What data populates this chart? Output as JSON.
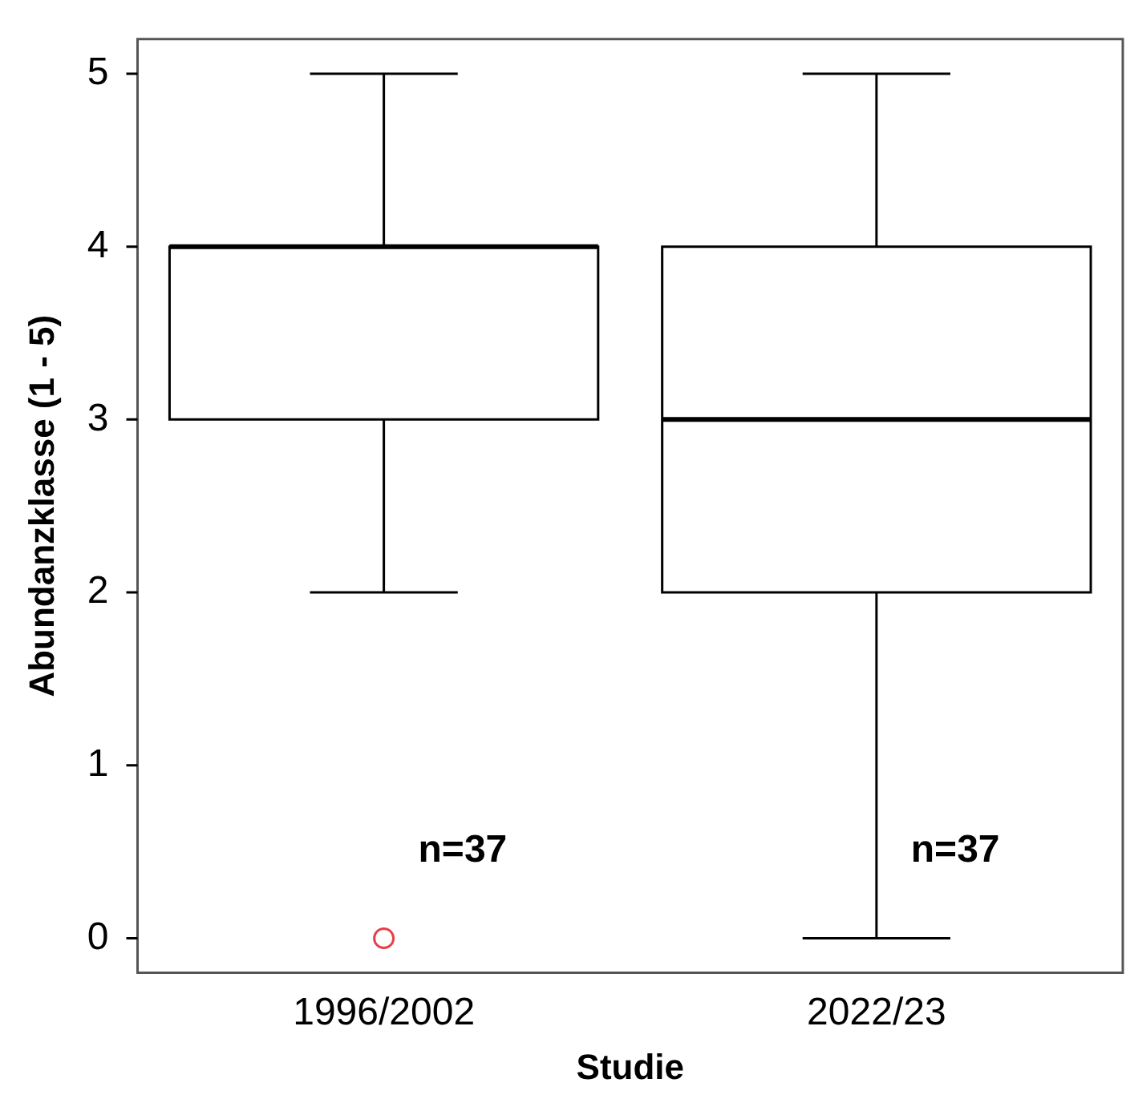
{
  "chart_data": {
    "type": "box",
    "xlabel": "Studie",
    "ylabel": "Abundanzklasse (1 - 5)",
    "categories": [
      "1996/2002",
      "2022/23"
    ],
    "boxes": [
      {
        "low": 2,
        "q1": 3,
        "median": 4,
        "q3": 4,
        "high": 5
      },
      {
        "low": 0,
        "q1": 2,
        "median": 3,
        "q3": 4,
        "high": 5
      }
    ],
    "series": [
      {
        "type": "scatter",
        "color": "#e8404a",
        "x": [
          "1996/2002"
        ],
        "values": [
          0
        ]
      }
    ],
    "ylim": [
      -0.2,
      5.2
    ],
    "yticks": [
      0,
      1,
      2,
      3,
      4,
      5
    ],
    "grid": false,
    "annotations": [
      "n=37",
      "n=37"
    ]
  }
}
